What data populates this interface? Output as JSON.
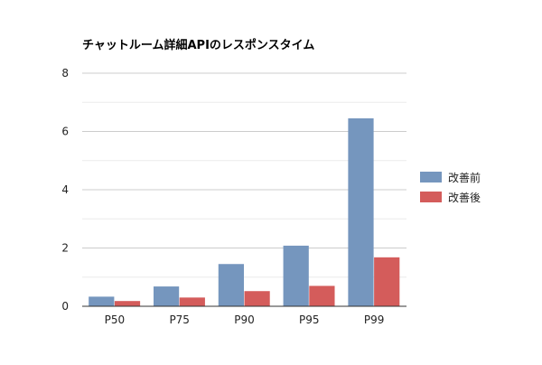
{
  "chart_data": {
    "type": "bar",
    "title": "チャットルーム詳細APIのレスポンスタイム",
    "xlabel": "",
    "ylabel": "",
    "categories": [
      "P50",
      "P75",
      "P90",
      "P95",
      "P99"
    ],
    "series": [
      {
        "name": "改善前",
        "color": "#7596be",
        "values": [
          0.33,
          0.68,
          1.45,
          2.08,
          6.45
        ]
      },
      {
        "name": "改善後",
        "color": "#d45c5b",
        "values": [
          0.18,
          0.3,
          0.52,
          0.7,
          1.68
        ]
      }
    ],
    "ylim": [
      0,
      8
    ],
    "yticks": [
      0,
      2,
      4,
      6,
      8
    ],
    "minor_grid": true,
    "legend_position": "right"
  }
}
